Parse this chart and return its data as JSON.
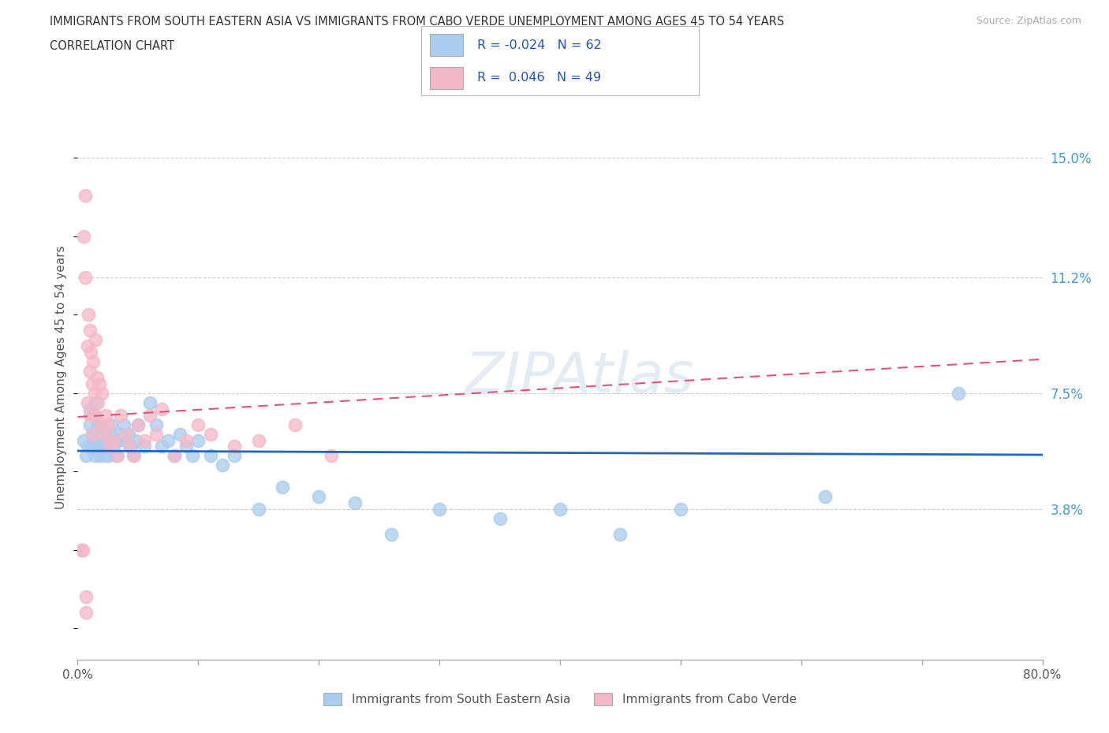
{
  "title_line1": "IMMIGRANTS FROM SOUTH EASTERN ASIA VS IMMIGRANTS FROM CABO VERDE UNEMPLOYMENT AMONG AGES 45 TO 54 YEARS",
  "title_line2": "CORRELATION CHART",
  "source": "Source: ZipAtlas.com",
  "ylabel": "Unemployment Among Ages 45 to 54 years",
  "xlim": [
    0.0,
    0.8
  ],
  "ylim": [
    -0.01,
    0.17
  ],
  "ytick_positions": [
    0.038,
    0.075,
    0.112,
    0.15
  ],
  "ytick_labels": [
    "3.8%",
    "7.5%",
    "11.2%",
    "15.0%"
  ],
  "blue_color": "#aaccee",
  "pink_color": "#f4b8c8",
  "blue_trend_color": "#2266bb",
  "pink_trend_color": "#dd5577",
  "legend_label_blue": "Immigrants from South Eastern Asia",
  "legend_label_pink": "Immigrants from Cabo Verde",
  "watermark": "ZIPAtlas",
  "grid_color": "#cccccc",
  "bg_color": "#ffffff",
  "title_color": "#333333",
  "axis_color": "#888888",
  "tick_label_color_right": "#4499cc",
  "blue_scatter_x": [
    0.005,
    0.007,
    0.008,
    0.01,
    0.01,
    0.012,
    0.012,
    0.013,
    0.014,
    0.015,
    0.015,
    0.016,
    0.017,
    0.018,
    0.018,
    0.019,
    0.02,
    0.02,
    0.021,
    0.022,
    0.023,
    0.024,
    0.025,
    0.026,
    0.027,
    0.028,
    0.03,
    0.032,
    0.034,
    0.036,
    0.038,
    0.04,
    0.042,
    0.044,
    0.046,
    0.048,
    0.05,
    0.055,
    0.06,
    0.065,
    0.07,
    0.075,
    0.08,
    0.085,
    0.09,
    0.095,
    0.1,
    0.11,
    0.12,
    0.13,
    0.15,
    0.17,
    0.2,
    0.23,
    0.26,
    0.3,
    0.35,
    0.4,
    0.45,
    0.5,
    0.62,
    0.73
  ],
  "blue_scatter_y": [
    0.06,
    0.055,
    0.058,
    0.065,
    0.07,
    0.062,
    0.058,
    0.068,
    0.055,
    0.072,
    0.06,
    0.058,
    0.065,
    0.06,
    0.055,
    0.062,
    0.058,
    0.065,
    0.06,
    0.055,
    0.062,
    0.058,
    0.055,
    0.06,
    0.062,
    0.065,
    0.058,
    0.055,
    0.06,
    0.062,
    0.065,
    0.06,
    0.062,
    0.058,
    0.055,
    0.06,
    0.065,
    0.058,
    0.072,
    0.065,
    0.058,
    0.06,
    0.055,
    0.062,
    0.058,
    0.055,
    0.06,
    0.055,
    0.052,
    0.055,
    0.038,
    0.045,
    0.042,
    0.04,
    0.03,
    0.038,
    0.035,
    0.038,
    0.03,
    0.038,
    0.042,
    0.075
  ],
  "pink_scatter_x": [
    0.003,
    0.004,
    0.005,
    0.006,
    0.006,
    0.007,
    0.007,
    0.008,
    0.008,
    0.009,
    0.01,
    0.01,
    0.01,
    0.011,
    0.012,
    0.012,
    0.013,
    0.013,
    0.014,
    0.015,
    0.015,
    0.016,
    0.017,
    0.018,
    0.02,
    0.02,
    0.022,
    0.023,
    0.025,
    0.027,
    0.03,
    0.033,
    0.036,
    0.04,
    0.043,
    0.047,
    0.05,
    0.055,
    0.06,
    0.065,
    0.07,
    0.08,
    0.09,
    0.1,
    0.11,
    0.13,
    0.15,
    0.18,
    0.21
  ],
  "pink_scatter_y": [
    0.025,
    0.025,
    0.125,
    0.138,
    0.112,
    0.01,
    0.005,
    0.09,
    0.072,
    0.1,
    0.095,
    0.082,
    0.068,
    0.088,
    0.078,
    0.062,
    0.085,
    0.068,
    0.075,
    0.092,
    0.068,
    0.08,
    0.072,
    0.078,
    0.075,
    0.065,
    0.062,
    0.068,
    0.065,
    0.058,
    0.06,
    0.055,
    0.068,
    0.062,
    0.058,
    0.055,
    0.065,
    0.06,
    0.068,
    0.062,
    0.07,
    0.055,
    0.06,
    0.065,
    0.062,
    0.058,
    0.06,
    0.065,
    0.055
  ]
}
